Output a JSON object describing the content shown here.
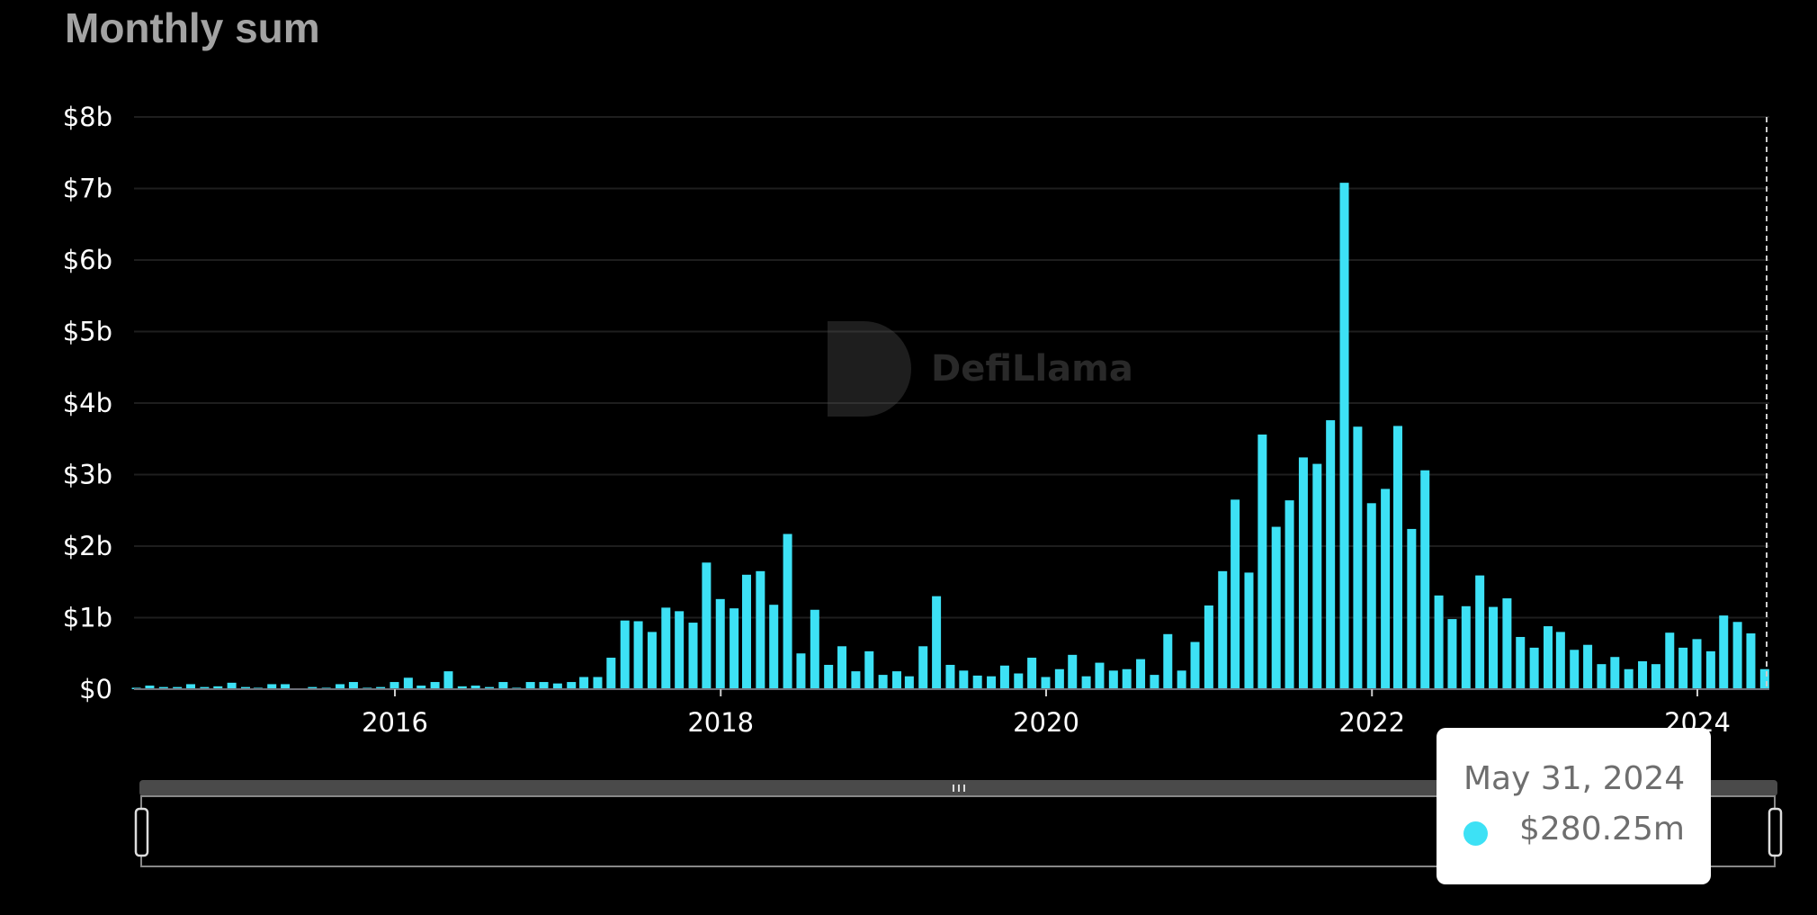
{
  "chart_data": {
    "type": "bar",
    "title": "Monthly sum",
    "xlabel": "",
    "ylabel": "",
    "ylim": [
      0,
      8
    ],
    "y_unit": "billion USD",
    "y_ticks": [
      "$0",
      "$1b",
      "$2b",
      "$3b",
      "$4b",
      "$5b",
      "$6b",
      "$7b",
      "$8b"
    ],
    "x_ticks": [
      "2016",
      "2018",
      "2020",
      "2022",
      "2024"
    ],
    "grid": true,
    "first_month": "2014-05",
    "last_month": "2024-05",
    "bar_date": "month-end",
    "values": [
      0.02,
      0.05,
      0.03,
      0.03,
      0.07,
      0.03,
      0.04,
      0.09,
      0.03,
      0.02,
      0.07,
      0.07,
      0.01,
      0.03,
      0.02,
      0.07,
      0.1,
      0.02,
      0.03,
      0.1,
      0.16,
      0.05,
      0.1,
      0.25,
      0.04,
      0.05,
      0.03,
      0.1,
      0.02,
      0.1,
      0.1,
      0.08,
      0.1,
      0.17,
      0.17,
      0.44,
      0.96,
      0.95,
      0.8,
      1.14,
      1.09,
      0.93,
      1.77,
      1.26,
      1.13,
      1.6,
      1.65,
      1.18,
      2.17,
      0.5,
      1.11,
      0.34,
      0.6,
      0.25,
      0.53,
      0.2,
      0.25,
      0.18,
      0.6,
      1.3,
      0.34,
      0.26,
      0.19,
      0.18,
      0.33,
      0.22,
      0.44,
      0.17,
      0.28,
      0.48,
      0.18,
      0.37,
      0.26,
      0.28,
      0.42,
      0.2,
      0.77,
      0.26,
      0.66,
      1.17,
      1.65,
      2.65,
      1.63,
      3.56,
      2.27,
      2.64,
      3.24,
      3.15,
      3.76,
      7.08,
      3.67,
      2.6,
      2.8,
      3.68,
      2.24,
      3.06,
      1.31,
      0.98,
      1.16,
      1.59,
      1.15,
      1.27,
      0.73,
      0.58,
      0.88,
      0.8,
      0.55,
      0.62,
      0.35,
      0.45,
      0.28,
      0.39,
      0.35,
      0.79,
      0.58,
      0.7,
      0.53,
      1.03,
      0.94,
      0.78,
      0.28025
    ],
    "bar_color": "#3de1f5",
    "watermark": "DefiLlama"
  },
  "tooltip": {
    "date": "May 31, 2024",
    "value": "$280.25m",
    "dot_color": "#3de1f5"
  },
  "colors": {
    "background": "#000000",
    "grid": "#1e1e1e",
    "slider": "#4a4a4a"
  }
}
